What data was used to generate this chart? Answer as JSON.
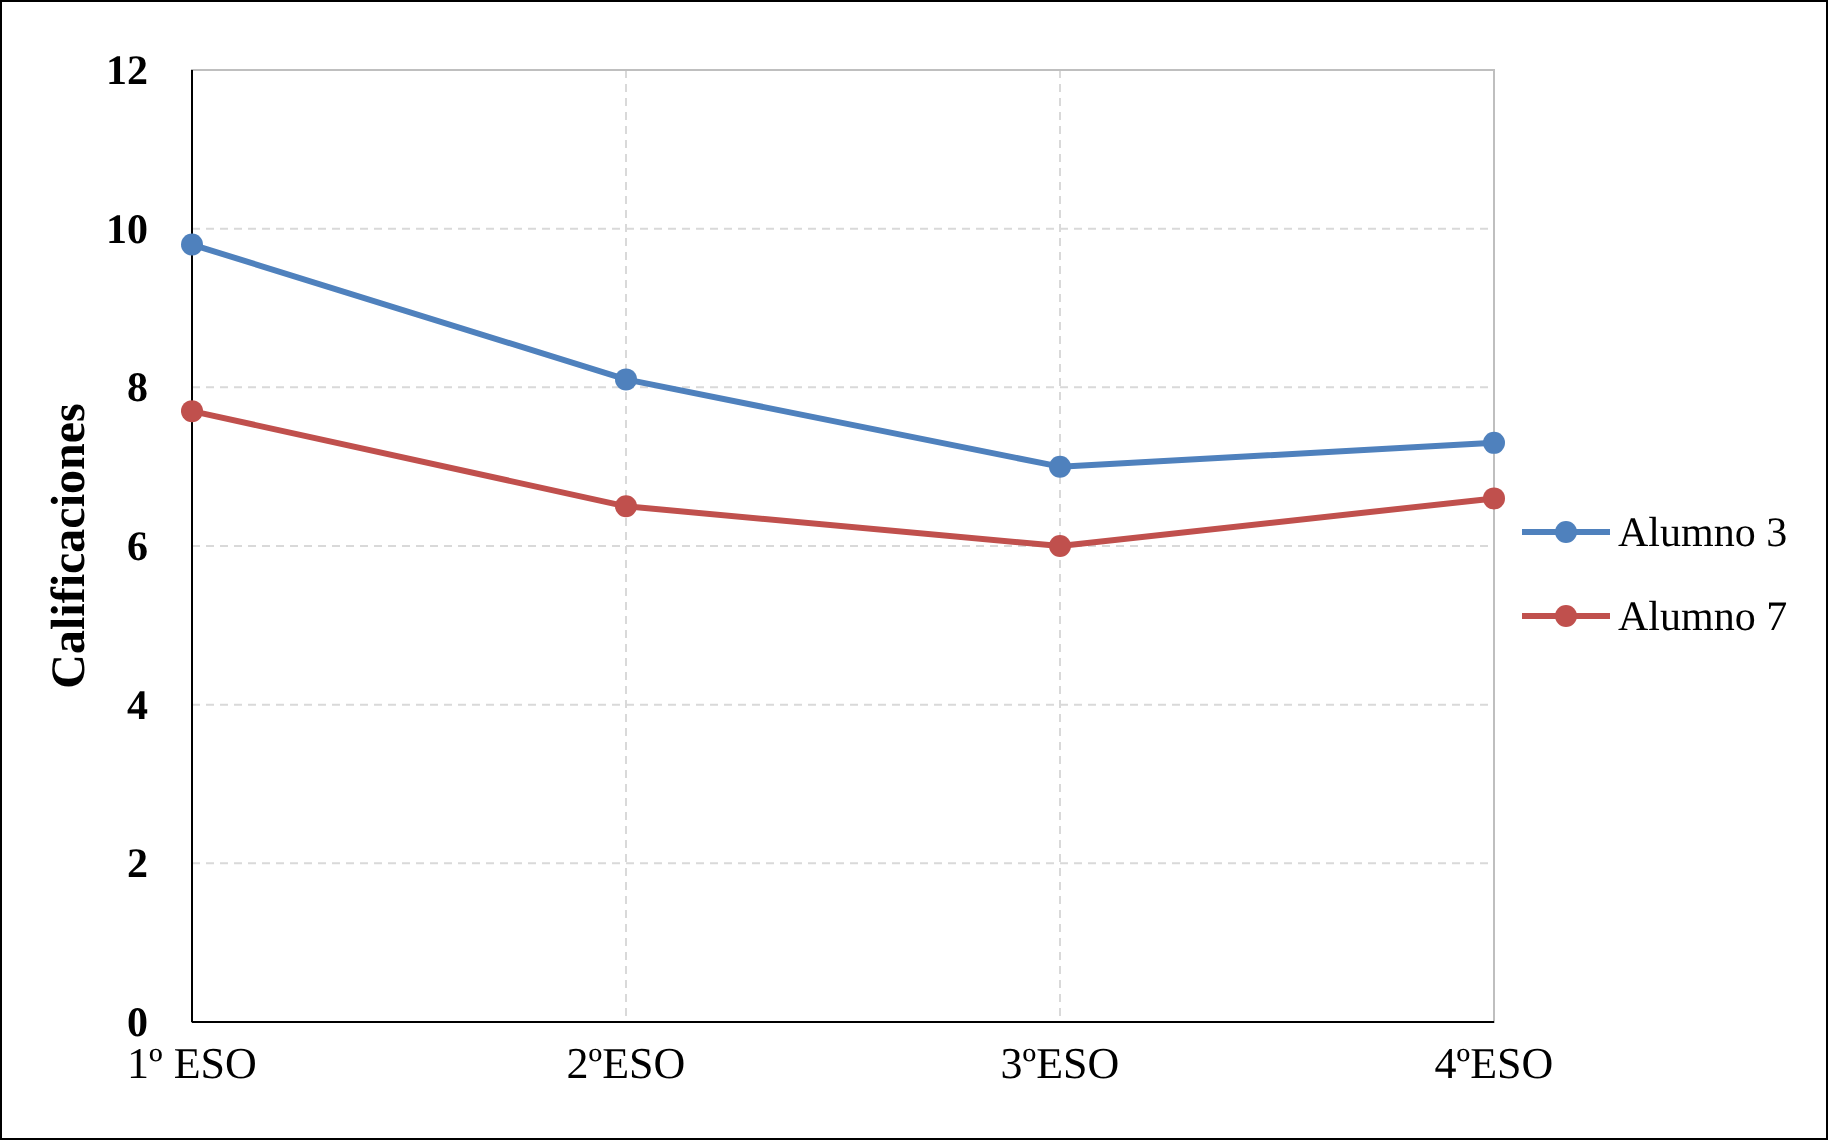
{
  "chart_data": {
    "type": "line",
    "ylabel": "Calificaciones",
    "categories": [
      "1º ESO",
      "2ºESO",
      "3ºESO",
      "4ºESO"
    ],
    "series": [
      {
        "name": "Alumno 3",
        "color": "#4f81bd",
        "values": [
          9.8,
          8.1,
          7.0,
          7.3
        ]
      },
      {
        "name": "Alumno 7",
        "color": "#c0504d",
        "values": [
          7.7,
          6.5,
          6.0,
          6.6
        ]
      }
    ],
    "ylim": [
      0,
      12
    ],
    "yticks": [
      0,
      2,
      4,
      6,
      8,
      10,
      12
    ],
    "grid": true,
    "legend": "right",
    "marker": "circle",
    "line_style": "solid"
  }
}
